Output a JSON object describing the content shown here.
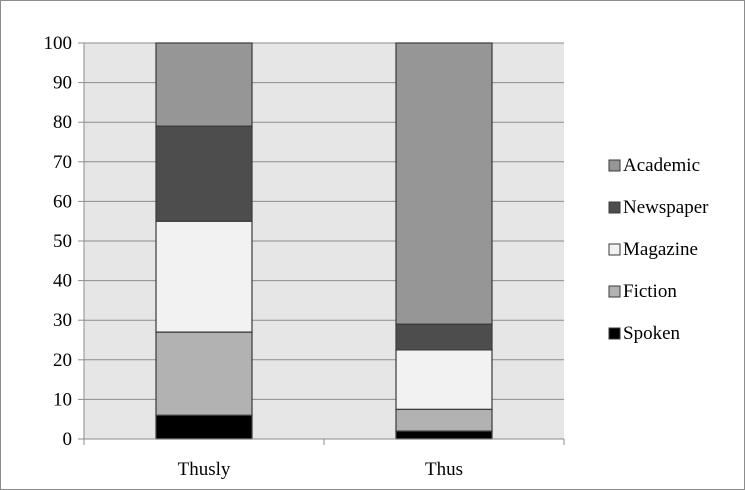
{
  "chart_data": {
    "type": "bar",
    "stacked": true,
    "title": "",
    "xlabel": "",
    "ylabel": "",
    "categories": [
      "Thusly",
      "Thus"
    ],
    "ylim": [
      0,
      100
    ],
    "yticks": [
      0,
      10,
      20,
      30,
      40,
      50,
      60,
      70,
      80,
      90,
      100
    ],
    "grid": true,
    "legend_position": "right",
    "series": [
      {
        "name": "Spoken",
        "values": [
          6,
          2
        ],
        "color": "#000000"
      },
      {
        "name": "Fiction",
        "values": [
          21,
          5.5
        ],
        "color": "#b2b2b2"
      },
      {
        "name": "Magazine",
        "values": [
          28,
          15
        ],
        "color": "#f2f2f2"
      },
      {
        "name": "Newspaper",
        "values": [
          24,
          6.5
        ],
        "color": "#4d4d4d"
      },
      {
        "name": "Academic",
        "values": [
          21,
          71
        ],
        "color": "#969696"
      }
    ],
    "plot_background": "#e6e6e6",
    "gridline_color": "#8c8c8c"
  }
}
